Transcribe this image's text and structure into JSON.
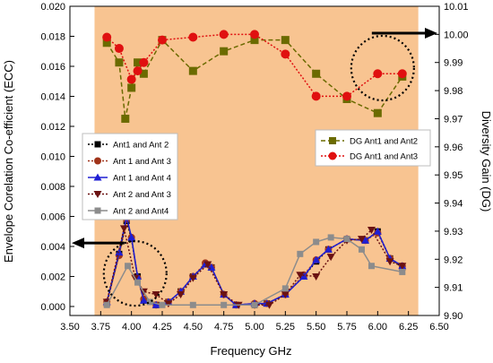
{
  "chart_data": {
    "type": "line",
    "xlabel": "Frequency GHz",
    "ylabel": "Envelope Corelation Co-efficient (ECC)",
    "y2label": "Diversity Gain (DG)",
    "xlim": [
      3.5,
      6.5
    ],
    "ylim": [
      -0.0006,
      0.02
    ],
    "y2lim": [
      9.9,
      10.01
    ],
    "xticks": [
      "3.50",
      "3.75",
      "4.00",
      "4.25",
      "4.50",
      "4.75",
      "5.00",
      "5.25",
      "5.50",
      "5.75",
      "6.00",
      "6.25",
      "6.50"
    ],
    "yticks": [
      "0.000",
      "0.002",
      "0.004",
      "0.006",
      "0.008",
      "0.010",
      "0.012",
      "0.014",
      "0.016",
      "0.018",
      "0.020"
    ],
    "y2ticks": [
      "9.90",
      "9.91",
      "9.92",
      "9.93",
      "9.94",
      "9.95",
      "9.96",
      "9.97",
      "9.98",
      "9.99",
      "10.00",
      "10.01"
    ],
    "shaded_region": [
      3.7,
      6.33
    ],
    "colors": {
      "background": "#f8c491",
      "frame": "#000000"
    },
    "ecc_series": [
      {
        "name": "Ant1 and Ant 2",
        "color": "#000000",
        "marker": "square",
        "dash": "2,2",
        "x": [
          3.8,
          3.9,
          3.96,
          4.0,
          4.05,
          4.1,
          4.2,
          4.3,
          4.4,
          4.5,
          4.6,
          4.65,
          4.75,
          4.85,
          5.0,
          5.1,
          5.25,
          5.4,
          5.5,
          5.6,
          5.75,
          5.9,
          6.0,
          6.1,
          6.2
        ],
        "y": [
          0.0002,
          0.0035,
          0.0057,
          0.0045,
          0.002,
          0.0004,
          0.0001,
          0.0003,
          0.001,
          0.002,
          0.0028,
          0.0026,
          0.0008,
          0.0001,
          0.0001,
          0.0002,
          0.0008,
          0.002,
          0.003,
          0.0038,
          0.0045,
          0.0044,
          0.005,
          0.0032,
          0.0026
        ]
      },
      {
        "name": "Ant 1 and Ant 3",
        "color": "#a0341a",
        "marker": "circle",
        "dash": "2,2",
        "x": [
          3.8,
          3.9,
          3.96,
          4.0,
          4.05,
          4.1,
          4.2,
          4.3,
          4.4,
          4.5,
          4.6,
          4.65,
          4.75,
          4.85,
          5.0,
          5.1,
          5.25,
          5.4,
          5.5,
          5.6,
          5.75,
          5.9,
          6.0,
          6.1,
          6.2
        ],
        "y": [
          0.0003,
          0.0034,
          0.0058,
          0.0046,
          0.0019,
          0.0005,
          0.0001,
          0.0003,
          0.001,
          0.002,
          0.0029,
          0.0026,
          0.0008,
          0.0001,
          0.0002,
          0.0002,
          0.0008,
          0.0021,
          0.0031,
          0.0038,
          0.0045,
          0.0044,
          0.0049,
          0.0032,
          0.0027
        ]
      },
      {
        "name": "Ant 1 and Ant 4",
        "color": "#1f1fd4",
        "marker": "triangle",
        "dash": "",
        "x": [
          3.8,
          3.9,
          3.96,
          4.0,
          4.05,
          4.1,
          4.2,
          4.3,
          4.4,
          4.5,
          4.6,
          4.65,
          4.75,
          4.85,
          5.0,
          5.1,
          5.25,
          5.4,
          5.5,
          5.6,
          5.75,
          5.9,
          6.0,
          6.1,
          6.2
        ],
        "y": [
          0.0003,
          0.0036,
          0.006,
          0.0046,
          0.002,
          0.0004,
          0.0001,
          0.0003,
          0.001,
          0.002,
          0.0028,
          0.0026,
          0.0008,
          0.0001,
          0.0002,
          0.0002,
          0.0008,
          0.002,
          0.0031,
          0.0038,
          0.0045,
          0.0044,
          0.005,
          0.0032,
          0.0027
        ]
      },
      {
        "name": "Ant 2 and Ant 3",
        "color": "#6b1212",
        "marker": "triangle-down",
        "dash": "2,2",
        "x": [
          3.8,
          3.94,
          4.03,
          4.1,
          4.2,
          4.3,
          4.4,
          4.5,
          4.62,
          4.75,
          4.87,
          5.0,
          5.12,
          5.25,
          5.37,
          5.5,
          5.62,
          5.75,
          5.87,
          5.95,
          6.1,
          6.2
        ],
        "y": [
          0.0003,
          0.0052,
          0.0019,
          0.001,
          0.0008,
          0.0002,
          0.0008,
          0.0019,
          0.0028,
          0.0008,
          0.0001,
          0.0001,
          0.0001,
          0.0008,
          0.0021,
          0.002,
          0.0033,
          0.0044,
          0.0045,
          0.0051,
          0.003,
          0.0027
        ]
      },
      {
        "name": "Ant 2 and Ant4",
        "color": "#8c8c8c",
        "marker": "square",
        "dash": "",
        "x": [
          3.8,
          3.97,
          4.05,
          4.15,
          4.25,
          4.5,
          4.75,
          5.0,
          5.25,
          5.37,
          5.5,
          5.62,
          5.75,
          5.87,
          5.95,
          6.2
        ],
        "y": [
          0.0001,
          0.0027,
          0.0016,
          0.0003,
          0.0001,
          0.0001,
          0.0001,
          0.0001,
          0.0012,
          0.0035,
          0.0043,
          0.0046,
          0.0045,
          0.0038,
          0.0027,
          0.0023
        ]
      }
    ],
    "dg_series": [
      {
        "name": "DG Ant1 and Ant2",
        "color": "#6b6b00",
        "marker": "square",
        "dash": "5,3",
        "x": [
          3.8,
          3.9,
          3.95,
          4.0,
          4.05,
          4.1,
          4.25,
          4.5,
          4.75,
          5.0,
          5.25,
          5.5,
          5.75,
          6.0,
          6.2
        ],
        "y": [
          9.997,
          9.99,
          9.97,
          9.981,
          9.99,
          9.986,
          9.998,
          9.987,
          9.994,
          9.998,
          9.998,
          9.986,
          9.977,
          9.972,
          9.985
        ]
      },
      {
        "name": "DG Ant1 and Ant3",
        "color": "#e01010",
        "marker": "circle",
        "dash": "2,2",
        "x": [
          3.8,
          3.9,
          4.0,
          4.05,
          4.1,
          4.25,
          4.5,
          4.75,
          5.0,
          5.25,
          5.5,
          5.75,
          6.0,
          6.2
        ],
        "y": [
          9.999,
          9.995,
          9.984,
          9.987,
          9.99,
          9.998,
          9.999,
          10.0,
          10.0,
          9.993,
          9.978,
          9.978,
          9.986,
          9.986
        ]
      }
    ],
    "ecc_legend": [
      "Ant1 and Ant 2",
      "Ant 1 and Ant 3",
      "Ant 1 and Ant 4",
      "Ant 2 and Ant 3",
      "Ant 2 and Ant4"
    ],
    "dg_legend": [
      "DG Ant1 and Ant2",
      "DG Ant1 and Ant3"
    ],
    "annotations": [
      {
        "type": "ellipse-arrow",
        "target_axis": "left",
        "center": [
          4.03,
          0.0022
        ]
      },
      {
        "type": "ellipse-arrow",
        "target_axis": "right",
        "center": [
          6.04,
          9.988
        ]
      }
    ]
  }
}
